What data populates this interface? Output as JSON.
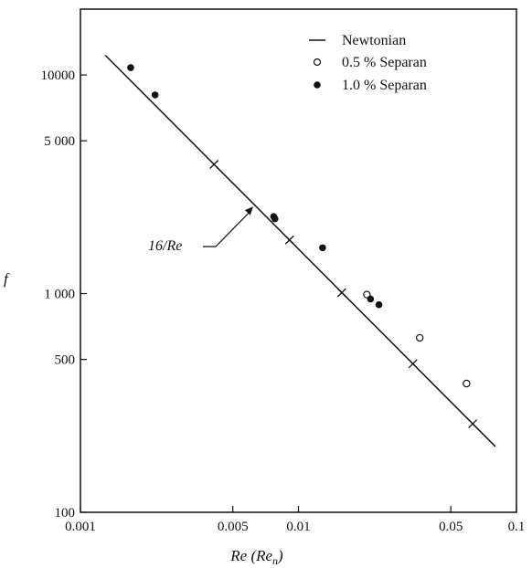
{
  "chart_data": {
    "type": "scatter",
    "xscale": "log",
    "yscale": "log",
    "xlim": [
      0.001,
      0.1
    ],
    "ylim": [
      100,
      20000
    ],
    "xlabel": "Re (Re_n)",
    "ylabel": "f",
    "xticks": [
      {
        "value": 0.001,
        "label": "0.001"
      },
      {
        "value": 0.005,
        "label": "0.005"
      },
      {
        "value": 0.01,
        "label": "0.01"
      },
      {
        "value": 0.05,
        "label": "0.05"
      },
      {
        "value": 0.1,
        "label": "0.1"
      }
    ],
    "yticks": [
      {
        "value": 100,
        "label": "100"
      },
      {
        "value": 500,
        "label": "500"
      },
      {
        "value": 1000,
        "label": "1 000"
      },
      {
        "value": 5000,
        "label": "5 000"
      },
      {
        "value": 10000,
        "label": "10000"
      }
    ],
    "legend_position": "top-right",
    "series": [
      {
        "name": "Newtonian",
        "kind": "line",
        "x": [
          0.0013,
          0.08
        ],
        "y": [
          12307.7,
          200
        ]
      },
      {
        "name": "Newtonian crosses",
        "kind": "cross",
        "x": [
          0.0041,
          0.0091,
          0.0158,
          0.0335,
          0.063
        ],
        "y": [
          3900,
          1760,
          1010,
          478,
          254
        ]
      },
      {
        "name": "0.5 % Separan",
        "kind": "open-circle",
        "x": [
          0.0206,
          0.036,
          0.059
        ],
        "y": [
          990,
          628,
          388
        ]
      },
      {
        "name": "1.0 % Separan",
        "kind": "filled-circle",
        "x": [
          0.0017,
          0.0022,
          0.0077,
          0.0078,
          0.0129,
          0.0214,
          0.0234
        ],
        "y": [
          10800,
          8100,
          2250,
          2200,
          1620,
          945,
          890
        ]
      }
    ],
    "annotation": {
      "text": "16/Re",
      "x": 0.0062,
      "y": 2500
    },
    "colors": {
      "ink": "#111111"
    }
  }
}
